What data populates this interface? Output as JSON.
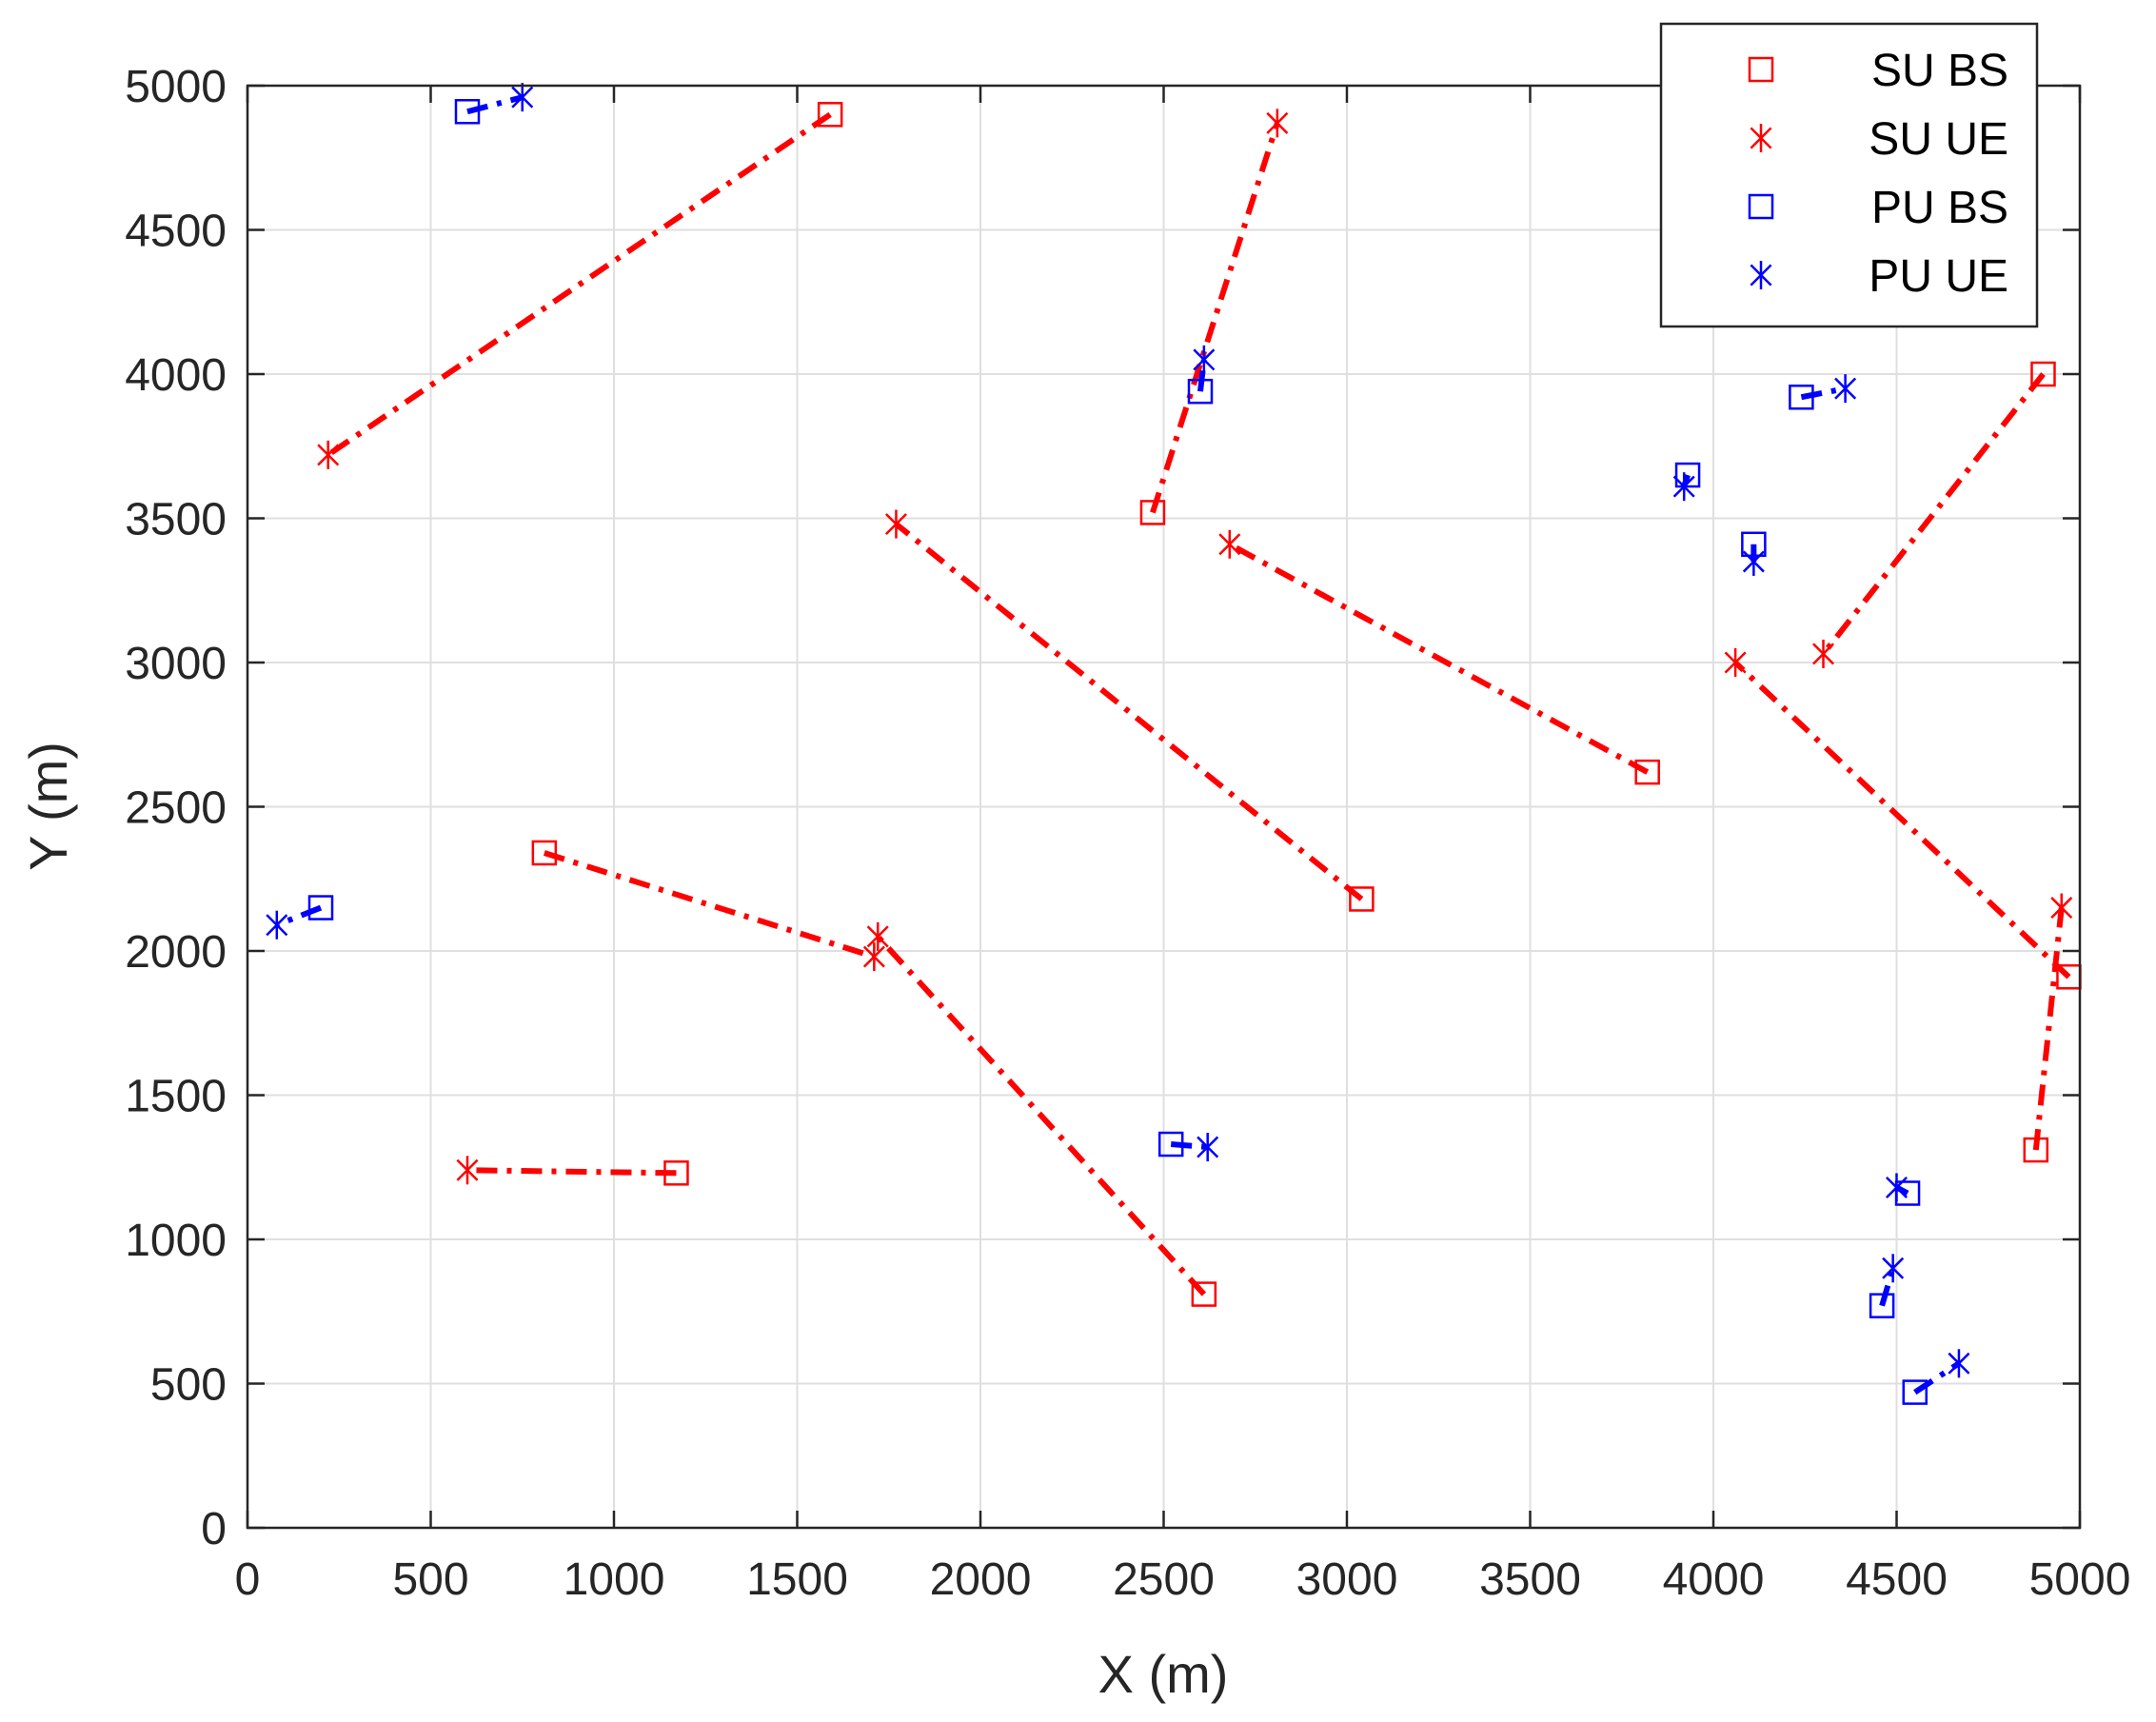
{
  "chart_data": {
    "type": "scatter",
    "xlabel": "X (m)",
    "ylabel": "Y (m)",
    "xlim": [
      0,
      5000
    ],
    "ylim": [
      0,
      5000
    ],
    "xticks": [
      0,
      500,
      1000,
      1500,
      2000,
      2500,
      3000,
      3500,
      4000,
      4500,
      5000
    ],
    "yticks": [
      0,
      500,
      1000,
      1500,
      2000,
      2500,
      3000,
      3500,
      4000,
      4500,
      5000
    ],
    "xtick_labels": [
      "0",
      "500",
      "1000",
      "1500",
      "2000",
      "2500",
      "3000",
      "3500",
      "4000",
      "4500",
      "5000"
    ],
    "ytick_labels": [
      "0",
      "500",
      "1000",
      "1500",
      "2000",
      "2500",
      "3000",
      "3500",
      "4000",
      "4500",
      "5000"
    ],
    "grid": true,
    "legend": {
      "location": "top-right",
      "entries": [
        {
          "label": "SU BS",
          "marker": "square",
          "color": "#ff0000"
        },
        {
          "label": "SU UE",
          "marker": "asterisk",
          "color": "#ff0000"
        },
        {
          "label": "PU BS",
          "marker": "square",
          "color": "#0000ff"
        },
        {
          "label": "PU UE",
          "marker": "asterisk",
          "color": "#0000ff"
        }
      ]
    },
    "colors": {
      "su": "#ff0000",
      "pu": "#0000ff",
      "grid": "#dfdfdf",
      "axis": "#262626"
    },
    "su_links": [
      {
        "bs": [
          1590,
          4900
        ],
        "ue": [
          220,
          3720
        ]
      },
      {
        "bs": [
          2470,
          3520
        ],
        "ue": [
          2810,
          4870
        ]
      },
      {
        "bs": [
          3040,
          2180
        ],
        "ue": [
          1770,
          3480
        ]
      },
      {
        "bs": [
          3820,
          2620
        ],
        "ue": [
          2680,
          3410
        ]
      },
      {
        "bs": [
          4900,
          4000
        ],
        "ue": [
          4300,
          3030
        ]
      },
      {
        "bs": [
          4970,
          1910
        ],
        "ue": [
          4060,
          3000
        ]
      },
      {
        "bs": [
          4880,
          1310
        ],
        "ue": [
          4950,
          2150
        ]
      },
      {
        "bs": [
          810,
          2340
        ],
        "ue": [
          1710,
          1980
        ]
      },
      {
        "bs": [
          2610,
          810
        ],
        "ue": [
          1720,
          2050
        ]
      },
      {
        "bs": [
          1170,
          1230
        ],
        "ue": [
          600,
          1240
        ]
      }
    ],
    "pu_links": [
      {
        "bs": [
          600,
          4910
        ],
        "ue": [
          750,
          4960
        ]
      },
      {
        "bs": [
          2600,
          3940
        ],
        "ue": [
          2610,
          4050
        ]
      },
      {
        "bs": [
          3930,
          3650
        ],
        "ue": [
          3920,
          3610
        ]
      },
      {
        "bs": [
          4240,
          3920
        ],
        "ue": [
          4360,
          3950
        ]
      },
      {
        "bs": [
          4110,
          3410
        ],
        "ue": [
          4110,
          3350
        ]
      },
      {
        "bs": [
          200,
          2150
        ],
        "ue": [
          80,
          2090
        ]
      },
      {
        "bs": [
          2520,
          1330
        ],
        "ue": [
          2620,
          1320
        ]
      },
      {
        "bs": [
          4530,
          1160
        ],
        "ue": [
          4500,
          1180
        ]
      },
      {
        "bs": [
          4460,
          770
        ],
        "ue": [
          4490,
          900
        ]
      },
      {
        "bs": [
          4550,
          470
        ],
        "ue": [
          4670,
          570
        ]
      }
    ]
  }
}
